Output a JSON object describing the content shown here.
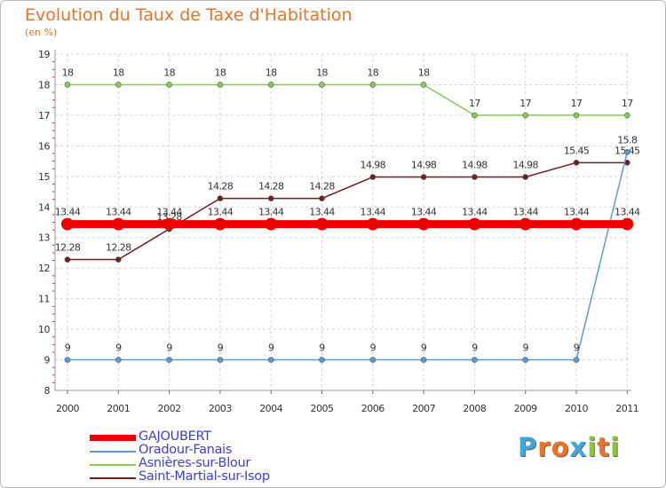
{
  "chart_data": {
    "type": "line",
    "title": "Evolution du Taux de Taxe d'Habitation",
    "ylabel": "(en %)",
    "xlabel": "",
    "categories": [
      "2000",
      "2001",
      "2002",
      "2003",
      "2004",
      "2005",
      "2006",
      "2007",
      "2008",
      "2009",
      "2010",
      "2011"
    ],
    "ylim": [
      8,
      19
    ],
    "yticks": [
      8,
      9,
      10,
      11,
      12,
      13,
      14,
      15,
      16,
      17,
      18,
      19
    ],
    "grid": true,
    "series": [
      {
        "name": "Asnières-sur-Blour",
        "color": "#88cc55",
        "values": [
          18,
          18,
          18,
          18,
          18,
          18,
          18,
          18,
          17,
          17,
          17,
          17
        ],
        "labels": [
          "18",
          "18",
          "18",
          "18",
          "18",
          "18",
          "18",
          "18",
          "17",
          "17",
          "17",
          "17"
        ]
      },
      {
        "name": "Saint-Martial-sur-Isop",
        "color": "#6e1f1f",
        "values": [
          12.28,
          12.28,
          13.28,
          14.28,
          14.28,
          14.28,
          14.98,
          14.98,
          14.98,
          14.98,
          15.45,
          15.45
        ],
        "labels": [
          "12.28",
          "12.28",
          "13.28",
          "14.28",
          "14.28",
          "14.28",
          "14.98",
          "14.98",
          "14.98",
          "14.98",
          "15.45",
          "15.45"
        ]
      },
      {
        "name": "Oradour-Fanais",
        "color": "#5b9bd5",
        "values": [
          9,
          9,
          9,
          9,
          9,
          9,
          9,
          9,
          9,
          9,
          9,
          15.8
        ],
        "labels": [
          "9",
          "9",
          "9",
          "9",
          "9",
          "9",
          "9",
          "9",
          "9",
          "9",
          "9",
          "15.8"
        ]
      },
      {
        "name": "GAJOUBERT",
        "color": "#ee0000",
        "values": [
          13.44,
          13.44,
          13.44,
          13.44,
          13.44,
          13.44,
          13.44,
          13.44,
          13.44,
          13.44,
          13.44,
          13.44
        ],
        "labels": [
          "13.44",
          "13.44",
          "13.44",
          "13.44",
          "13.44",
          "13.44",
          "13.44",
          "13.44",
          "13.44",
          "13.44",
          "13.44",
          "13.44"
        ]
      }
    ]
  },
  "legend": [
    {
      "name": "GAJOUBERT",
      "color": "#ee0000",
      "thick": true
    },
    {
      "name": "Oradour-Fanais",
      "color": "#5b9bd5",
      "thick": false
    },
    {
      "name": "Asnières-sur-Blour",
      "color": "#88cc55",
      "thick": false
    },
    {
      "name": "Saint-Martial-sur-Isop",
      "color": "#6e1f1f",
      "thick": false
    }
  ],
  "logo": {
    "text": "Proxiti",
    "letters": [
      {
        "ch": "P",
        "color": "#3fa7e0"
      },
      {
        "ch": "r",
        "color": "#e8742a"
      },
      {
        "ch": "o",
        "color": "#e8742a"
      },
      {
        "ch": "x",
        "color": "#3fa7e0"
      },
      {
        "ch": "i",
        "color": "#8cc63f"
      },
      {
        "ch": "t",
        "color": "#e8742a"
      },
      {
        "ch": "i",
        "color": "#8cc63f"
      }
    ]
  }
}
